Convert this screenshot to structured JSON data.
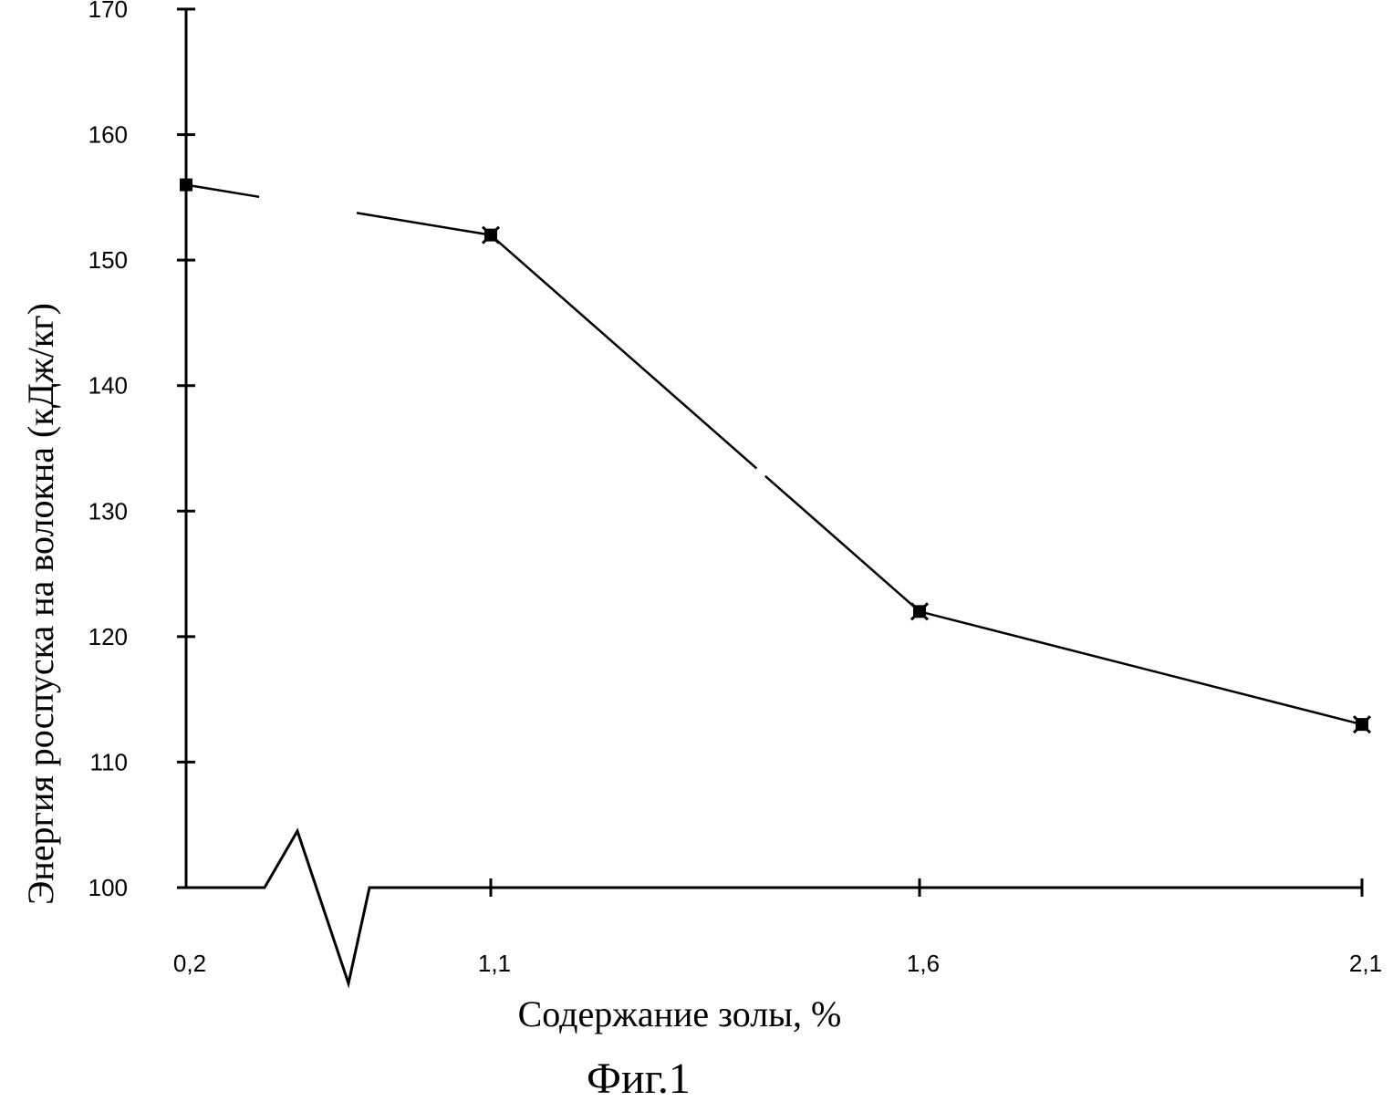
{
  "chart_data": {
    "type": "line",
    "x_tick_labels": [
      "0,2",
      "1,1",
      "1,6",
      "2,1"
    ],
    "y_ticks": [
      100,
      110,
      120,
      130,
      140,
      150,
      160,
      170
    ],
    "ylim": [
      100,
      170
    ],
    "xlabel": "Содержание золы, %",
    "ylabel": "Энергия роспуска на волокна (кДж/кг)",
    "series": [
      {
        "x": [
          "0,2",
          "1,1",
          "1,6",
          "2,1"
        ],
        "values": [
          156,
          152,
          122,
          113
        ]
      }
    ],
    "x_axis_break": true,
    "grid": false,
    "legend": "none"
  },
  "caption": "Фиг.1"
}
